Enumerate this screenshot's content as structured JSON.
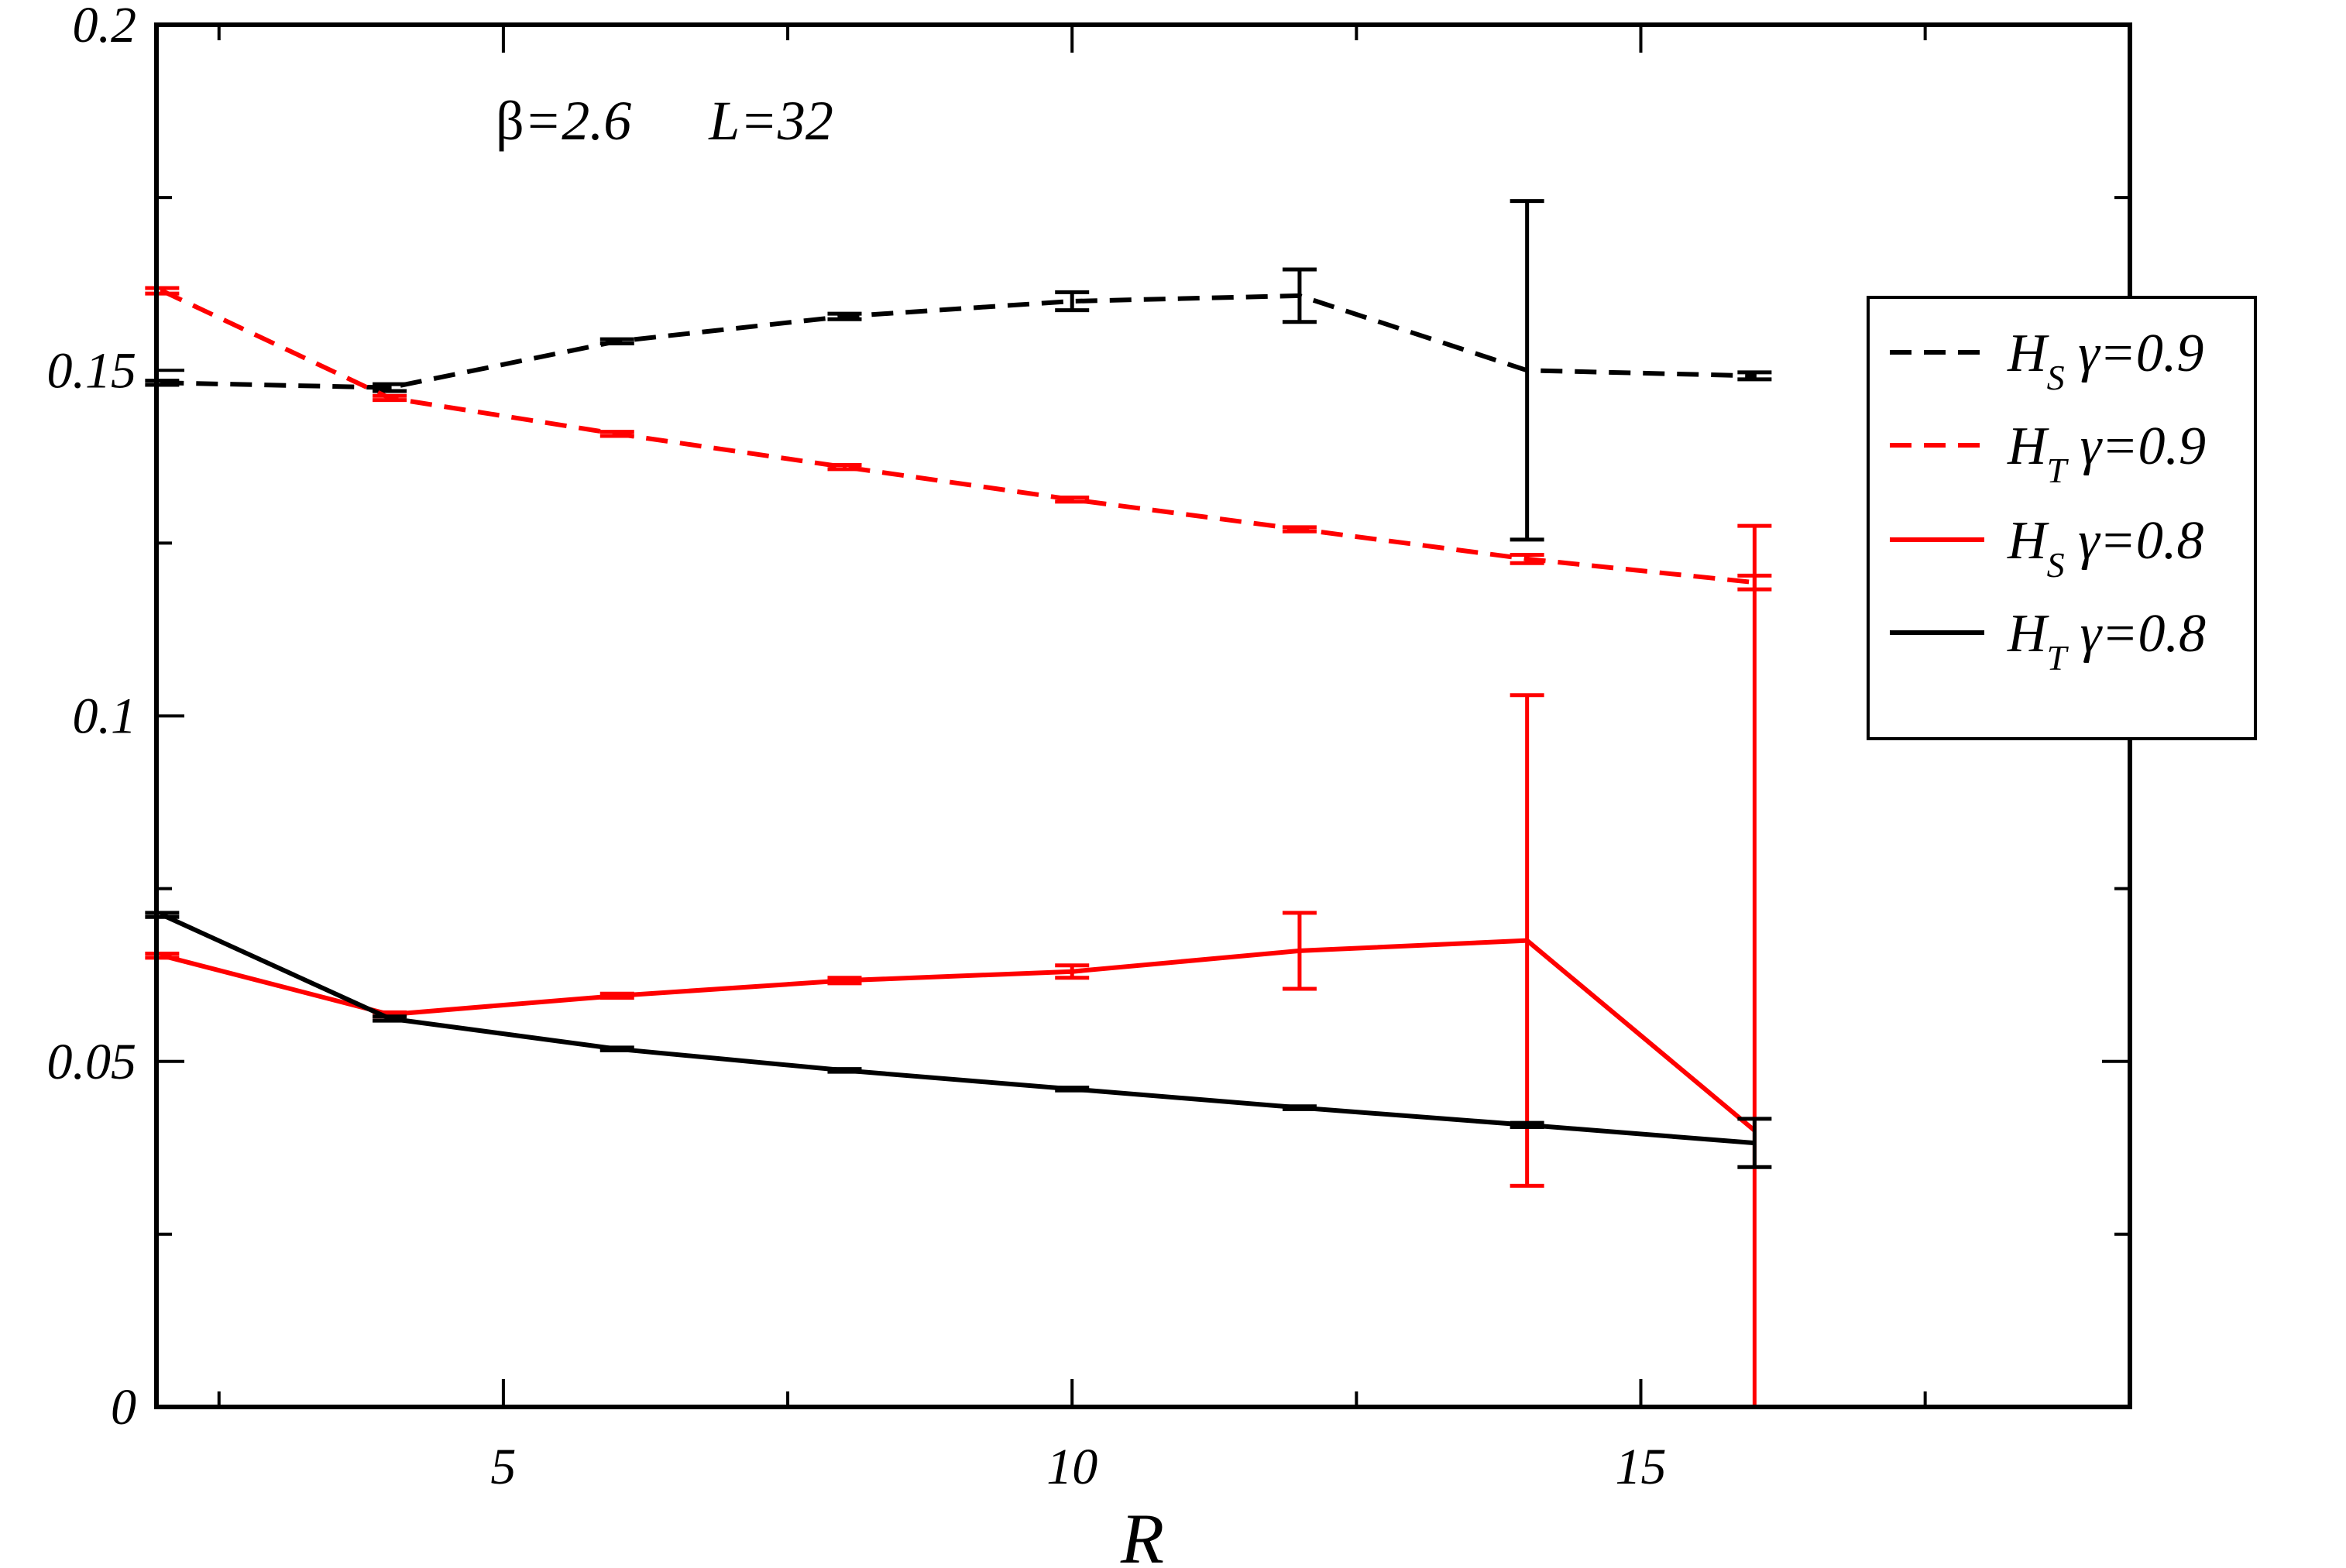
{
  "chart_data": {
    "type": "line",
    "title": "",
    "xlabel": "R",
    "ylabel": "",
    "xlim": [
      1.95,
      19.3
    ],
    "ylim": [
      0,
      0.2
    ],
    "x_ticks": [
      5,
      10,
      15
    ],
    "x_tick_labels": [
      "5",
      "10",
      "15"
    ],
    "y_ticks": [
      0,
      0.05,
      0.1,
      0.15,
      0.2
    ],
    "y_tick_labels": [
      "0",
      "0.05",
      "0.1",
      "0.15",
      "0.2"
    ],
    "grid": false,
    "legend_position": "right",
    "annotation": {
      "beta_symbol": "β",
      "beta_text": "=2.6",
      "l_text": "L=32"
    },
    "series": [
      {
        "legend_main": "H",
        "legend_sub": "S",
        "legend_rest": " γ=0.9",
        "color": "#000000",
        "dash": "dashed",
        "x": [
          2,
          4,
          6,
          8,
          10,
          12,
          14,
          16
        ],
        "y": [
          0.1482,
          0.1475,
          0.1542,
          0.1578,
          0.16,
          0.1608,
          0.15,
          0.1492
        ],
        "err": [
          0.0003,
          0.0005,
          0.0003,
          0.0004,
          0.0013,
          0.0038,
          0.0245,
          0.0005
        ]
      },
      {
        "legend_main": "H",
        "legend_sub": "T",
        "legend_rest": " γ=0.9",
        "color": "#ff0000",
        "dash": "dashed",
        "x": [
          2,
          4,
          6,
          8,
          10,
          12,
          14,
          16
        ],
        "y": [
          0.1615,
          0.146,
          0.1408,
          0.136,
          0.1313,
          0.127,
          0.1227,
          0.1193
        ],
        "err": [
          0.0004,
          0.0003,
          0.0003,
          0.0003,
          0.0003,
          0.0003,
          0.0006,
          0.001
        ]
      },
      {
        "legend_main": "H",
        "legend_sub": "S",
        "legend_rest": " γ=0.8",
        "color": "#ff0000",
        "dash": "solid",
        "x": [
          2,
          4,
          6,
          8,
          10,
          12,
          14,
          16
        ],
        "y": [
          0.0653,
          0.0568,
          0.0595,
          0.0617,
          0.063,
          0.066,
          0.0675,
          0.04
        ],
        "err": [
          0.0003,
          0.0003,
          0.0003,
          0.0004,
          0.0009,
          0.0055,
          0.0355,
          0.0875
        ]
      },
      {
        "legend_main": "H",
        "legend_sub": "T",
        "legend_rest": " γ=0.8",
        "color": "#000000",
        "dash": "solid",
        "x": [
          2,
          4,
          6,
          8,
          10,
          12,
          14,
          16
        ],
        "y": [
          0.0712,
          0.0562,
          0.0518,
          0.0487,
          0.046,
          0.0433,
          0.0408,
          0.0382
        ],
        "err": [
          0.0003,
          0.0003,
          0.0002,
          0.0002,
          0.0002,
          0.0002,
          0.0003,
          0.0035
        ]
      }
    ]
  }
}
